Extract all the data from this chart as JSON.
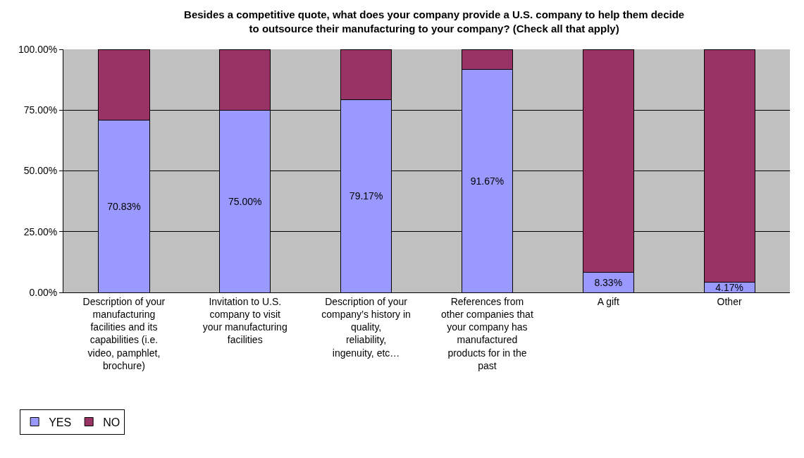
{
  "chart_data": {
    "type": "bar",
    "stacked": true,
    "title": "Besides a competitive quote, what does your company provide a U.S. company to help them decide to outsource their manufacturing to your company? (Check all that apply)",
    "categories": [
      "Description of your manufacturing facilities and its capabilities (i.e. video, pamphlet, brochure)",
      "Invitation to U.S. company to visit your manufacturing facilities",
      "Description of your company’s history in quality, reliability, ingenuity, etc…",
      "References from other companies that your company has manufactured products for in the past",
      "A gift",
      "Other"
    ],
    "series": [
      {
        "name": "YES",
        "color": "#9999ff",
        "values": [
          70.83,
          75.0,
          79.17,
          91.67,
          8.33,
          4.17
        ],
        "value_labels": [
          "70.83%",
          "75.00%",
          "79.17%",
          "91.67%",
          "8.33%",
          "4.17%"
        ]
      },
      {
        "name": "NO",
        "color": "#993366",
        "values": [
          29.17,
          25.0,
          20.83,
          8.33,
          91.67,
          95.83
        ]
      }
    ],
    "ylim": [
      0,
      100
    ],
    "yticks": [
      {
        "value": 0,
        "label": "0.00%"
      },
      {
        "value": 25,
        "label": "25.00%"
      },
      {
        "value": 50,
        "label": "50.00%"
      },
      {
        "value": 75,
        "label": "75.00%"
      },
      {
        "value": 100,
        "label": "100.00%"
      }
    ],
    "grid": "y",
    "legend": "bottom left"
  }
}
